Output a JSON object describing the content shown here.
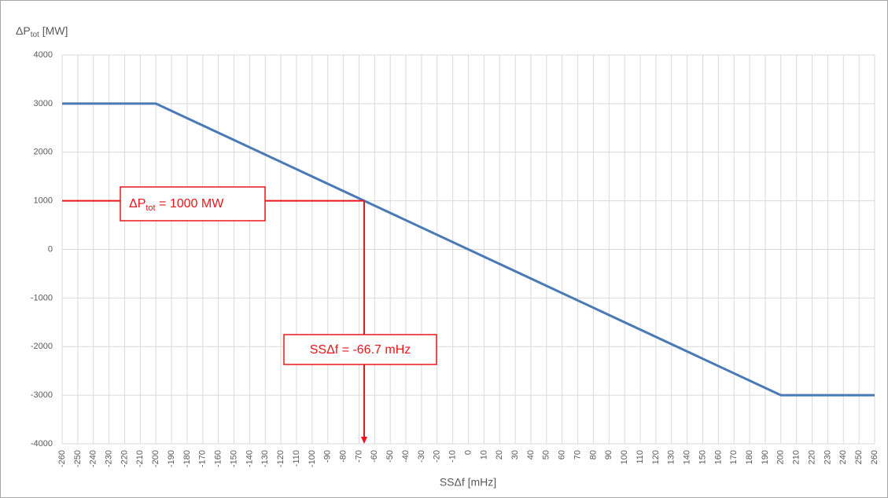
{
  "chart_data": {
    "type": "line",
    "y_label": {
      "main": "ΔP",
      "sub": "tot",
      "rest": " [MW]"
    },
    "x_label": "SSΔf [mHz]",
    "x": [
      -260,
      -200,
      200,
      260
    ],
    "series": [
      {
        "color": "#4a7ab5",
        "values": [
          3000,
          3000,
          -3000,
          -3000
        ]
      }
    ],
    "xlim": [
      -260,
      260
    ],
    "xticks": [
      -260,
      -250,
      -240,
      -230,
      -220,
      -210,
      -200,
      -190,
      -180,
      -170,
      -160,
      -150,
      -140,
      -130,
      -120,
      -110,
      -100,
      -90,
      -80,
      -70,
      -60,
      -50,
      -40,
      -30,
      -20,
      -10,
      0,
      10,
      20,
      30,
      40,
      50,
      60,
      70,
      80,
      90,
      100,
      110,
      120,
      130,
      140,
      150,
      160,
      170,
      180,
      190,
      200,
      210,
      220,
      230,
      240,
      250,
      260
    ],
    "ylim": [
      -4000,
      4000
    ],
    "yticks": [
      -4000,
      -3000,
      -2000,
      -1000,
      0,
      1000,
      2000,
      3000,
      4000
    ],
    "grid": true,
    "annotation": {
      "x": -66.7,
      "y": 1000,
      "color": "#e8161b",
      "y_text": {
        "main": "ΔP",
        "sub": "tot",
        "rest": " = 1000 MW"
      },
      "x_text": "SSΔf = -66.7 mHz"
    }
  }
}
